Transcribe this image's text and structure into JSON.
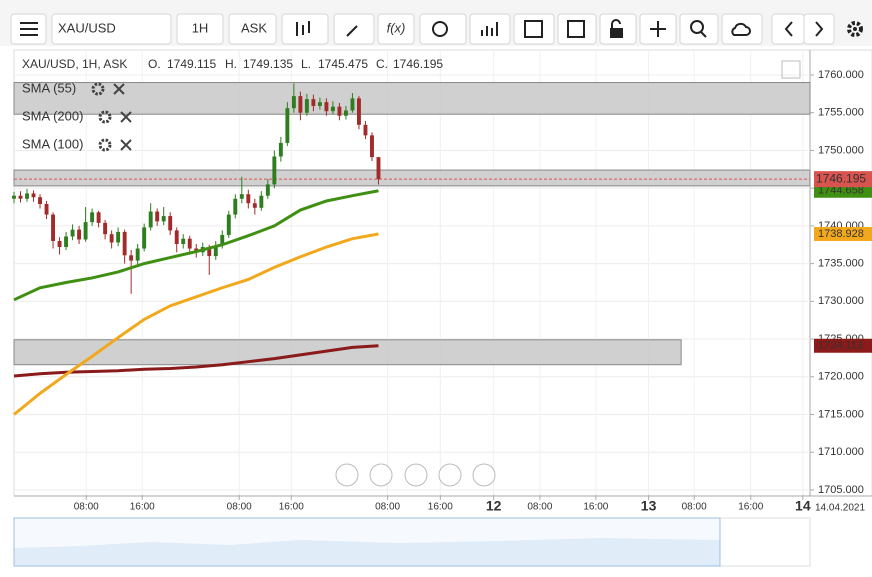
{
  "toolbar": {
    "symbol": "XAU/USD",
    "interval": "1H",
    "side": "ASK",
    "function_button": "f(x)"
  },
  "header": {
    "title": "XAU/USD, 1H, ASK",
    "o_label": "O.",
    "h_label": "H.",
    "l_label": "L.",
    "c_label": "C."
  },
  "date_label": "14.04.2021",
  "chart_data": {
    "type": "candlestick",
    "x": [
      0,
      1,
      2,
      3,
      4,
      5,
      6,
      7,
      8,
      9,
      10,
      11,
      12,
      13,
      14,
      15,
      16,
      17,
      18,
      19,
      20,
      21,
      22,
      23,
      24,
      25,
      26,
      27,
      28,
      29,
      30,
      31,
      32,
      33,
      34,
      35,
      36,
      37,
      38,
      39,
      40,
      41,
      42,
      43,
      44,
      45,
      46,
      47,
      48,
      49,
      50,
      51,
      52,
      53,
      54,
      55,
      56
    ],
    "open": [
      1743.6,
      1744.0,
      1743.6,
      1744.3,
      1743.8,
      1742.9,
      1741.5,
      1738.0,
      1737.2,
      1738.6,
      1739.5,
      1738.2,
      1740.5,
      1741.8,
      1740.4,
      1738.9,
      1737.8,
      1739.2,
      1736.1,
      1735.4,
      1737.0,
      1739.8,
      1741.9,
      1740.6,
      1741.3,
      1739.4,
      1737.6,
      1738.3,
      1737.0,
      1736.5,
      1737.2,
      1736.0,
      1737.4,
      1738.8,
      1741.5,
      1743.6,
      1744.2,
      1743.0,
      1742.4,
      1744.0,
      1745.5,
      1749.2,
      1751.0,
      1755.6,
      1757.2,
      1755.0,
      1756.8,
      1755.9,
      1756.4,
      1755.2,
      1755.8,
      1754.6,
      1755.3,
      1756.9,
      1753.4,
      1752.0,
      1749.115
    ],
    "high": [
      1744.5,
      1744.6,
      1744.9,
      1744.7,
      1744.2,
      1743.3,
      1741.8,
      1738.5,
      1739.2,
      1740.2,
      1740.0,
      1742.5,
      1742.3,
      1742.0,
      1740.8,
      1739.4,
      1739.8,
      1739.5,
      1736.8,
      1737.6,
      1740.3,
      1743.0,
      1742.3,
      1742.5,
      1741.8,
      1739.8,
      1738.9,
      1738.7,
      1737.6,
      1737.8,
      1737.5,
      1738.0,
      1739.4,
      1742.0,
      1744.2,
      1746.5,
      1744.8,
      1743.6,
      1744.6,
      1746.2,
      1750.0,
      1751.8,
      1756.4,
      1758.9,
      1757.8,
      1757.5,
      1757.4,
      1757.0,
      1756.9,
      1756.5,
      1756.3,
      1755.9,
      1757.6,
      1757.2,
      1753.9,
      1752.4,
      1749.135
    ],
    "low": [
      1743.0,
      1743.1,
      1743.2,
      1743.2,
      1742.3,
      1740.9,
      1737.0,
      1736.2,
      1736.8,
      1738.1,
      1737.6,
      1737.9,
      1740.0,
      1739.8,
      1738.2,
      1737.0,
      1737.3,
      1735.0,
      1731.0,
      1734.8,
      1736.6,
      1739.4,
      1740.0,
      1740.1,
      1738.8,
      1736.5,
      1737.0,
      1736.4,
      1735.8,
      1736.0,
      1733.5,
      1735.5,
      1737.0,
      1738.4,
      1741.0,
      1743.0,
      1742.3,
      1741.5,
      1742.0,
      1743.6,
      1745.0,
      1748.5,
      1750.6,
      1755.0,
      1754.0,
      1754.6,
      1755.2,
      1755.4,
      1754.6,
      1754.8,
      1754.0,
      1754.1,
      1755.0,
      1752.8,
      1751.5,
      1748.6,
      1745.475
    ],
    "close": [
      1744.0,
      1743.6,
      1744.3,
      1743.8,
      1742.9,
      1741.5,
      1738.0,
      1737.2,
      1738.6,
      1739.5,
      1738.2,
      1740.5,
      1741.8,
      1740.4,
      1738.9,
      1737.8,
      1739.2,
      1736.1,
      1735.4,
      1737.0,
      1739.8,
      1741.9,
      1740.6,
      1741.3,
      1739.4,
      1737.6,
      1738.3,
      1737.0,
      1736.5,
      1737.2,
      1736.0,
      1737.4,
      1738.8,
      1741.5,
      1743.6,
      1744.2,
      1743.0,
      1742.4,
      1744.0,
      1745.5,
      1749.2,
      1751.0,
      1755.6,
      1757.2,
      1755.0,
      1756.8,
      1755.9,
      1756.4,
      1755.2,
      1755.8,
      1754.6,
      1755.3,
      1756.9,
      1753.4,
      1752.0,
      1749.115,
      1746.195
    ],
    "up_color": "#2e7d1f",
    "down_color": "#a32a2a",
    "last_color": "#d9534f",
    "series": [
      {
        "name": "SMA (55)",
        "color": "#3f8f12",
        "x": [
          0,
          4,
          8,
          12,
          16,
          20,
          24,
          28,
          32,
          36,
          40,
          44,
          48,
          52,
          56
        ],
        "values": [
          1730.2,
          1731.8,
          1732.5,
          1733.1,
          1733.9,
          1735.0,
          1735.8,
          1736.6,
          1737.5,
          1738.7,
          1740.0,
          1742.1,
          1743.3,
          1744.0,
          1744.658
        ]
      },
      {
        "name": "SMA (200)",
        "color": "#8b1a1a",
        "x": [
          0,
          4,
          8,
          12,
          16,
          20,
          24,
          28,
          32,
          36,
          40,
          44,
          48,
          52,
          56
        ],
        "values": [
          1720.1,
          1720.4,
          1720.6,
          1720.7,
          1720.8,
          1721.0,
          1721.1,
          1721.3,
          1721.6,
          1722.0,
          1722.4,
          1722.9,
          1723.4,
          1723.9,
          1724.113
        ]
      },
      {
        "name": "SMA (100)",
        "color": "#f2a81d",
        "x": [
          0,
          4,
          8,
          12,
          16,
          20,
          24,
          28,
          32,
          36,
          40,
          44,
          48,
          52,
          56
        ],
        "values": [
          1715.0,
          1717.8,
          1720.3,
          1722.7,
          1725.2,
          1727.6,
          1729.4,
          1730.6,
          1731.8,
          1732.9,
          1734.5,
          1735.9,
          1737.2,
          1738.3,
          1738.928
        ]
      }
    ],
    "zones": [
      {
        "x": [
          0,
          122.3
        ],
        "from": 1754.8,
        "to": 1759.0
      },
      {
        "x": [
          0,
          122.3
        ],
        "from": 1745.3,
        "to": 1747.4
      },
      {
        "x": [
          0,
          102.5
        ],
        "from": 1721.6,
        "to": 1724.9
      }
    ],
    "zone_color": "#c8c8c8",
    "xlim": [
      0,
      122.3
    ],
    "ylim": [
      1704.33,
      1762.65
    ],
    "xticks": [
      {
        "value": 11.1,
        "label": "08:00"
      },
      {
        "value": 19.7,
        "label": "16:00"
      },
      {
        "value": 34.6,
        "label": "08:00"
      },
      {
        "value": 42.6,
        "label": "16:00"
      },
      {
        "value": 57.4,
        "label": "08:00"
      },
      {
        "value": 65.5,
        "label": "16:00"
      },
      {
        "value": 73.7,
        "label": "12"
      },
      {
        "value": 80.8,
        "label": "08:00"
      },
      {
        "value": 89.4,
        "label": "16:00"
      },
      {
        "value": 97.5,
        "label": "13"
      },
      {
        "value": 104.5,
        "label": "08:00"
      },
      {
        "value": 113.2,
        "label": "16:00"
      },
      {
        "value": 121.2,
        "label": "14"
      }
    ],
    "yticks": [
      {
        "value": 1705,
        "label": "1705.000"
      },
      {
        "value": 1710,
        "label": "1710.000"
      },
      {
        "value": 1715,
        "label": "1715.000"
      },
      {
        "value": 1720,
        "label": "1720.000"
      },
      {
        "value": 1725,
        "label": "1725.000"
      },
      {
        "value": 1730,
        "label": "1730.000"
      },
      {
        "value": 1735,
        "label": "1735.000"
      },
      {
        "value": 1740,
        "label": "1740.000"
      },
      {
        "value": 1745,
        "label": "1745.000"
      },
      {
        "value": 1750,
        "label": "1750.000"
      },
      {
        "value": 1755,
        "label": "1755.000"
      },
      {
        "value": 1760,
        "label": "1760.000"
      }
    ],
    "grid": true
  }
}
